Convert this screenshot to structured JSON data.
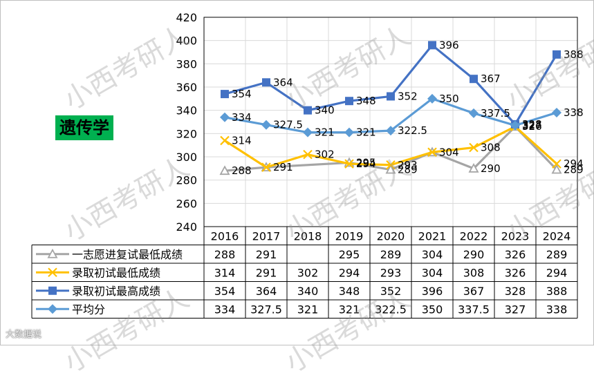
{
  "chart_data": {
    "type": "line",
    "subject_label": "遗传学",
    "categories": [
      "2016",
      "2017",
      "2018",
      "2019",
      "2020",
      "2021",
      "2022",
      "2023",
      "2024"
    ],
    "ylim": [
      240,
      420
    ],
    "yticks": [
      240,
      260,
      280,
      300,
      320,
      340,
      360,
      380,
      400,
      420
    ],
    "grid": true,
    "legend": "data-table-below",
    "series": [
      {
        "name": "一志愿进复试最低成绩",
        "color": "#a5a5a5",
        "marker": "triangle",
        "values": [
          288,
          291,
          null,
          295,
          289,
          304,
          290,
          326,
          289
        ],
        "table_values": [
          "288",
          "291",
          "",
          "295",
          "289",
          "304",
          "290",
          "326",
          "289"
        ]
      },
      {
        "name": "录取初试最低成绩",
        "color": "#ffc000",
        "marker": "x",
        "values": [
          314,
          291,
          302,
          294,
          293,
          304,
          308,
          326,
          294
        ],
        "table_values": [
          "314",
          "291",
          "302",
          "294",
          "293",
          "304",
          "308",
          "326",
          "294"
        ]
      },
      {
        "name": "录取初试最高成绩",
        "color": "#4472c4",
        "marker": "square",
        "values": [
          354,
          364,
          340,
          348,
          352,
          396,
          367,
          328,
          388
        ],
        "table_values": [
          "354",
          "364",
          "340",
          "348",
          "352",
          "396",
          "367",
          "328",
          "388"
        ]
      },
      {
        "name": "平均分",
        "color": "#5b9bd5",
        "marker": "diamond",
        "values": [
          334,
          327.5,
          321,
          321,
          322.5,
          350,
          337.5,
          327,
          338
        ],
        "table_values": [
          "334",
          "327.5",
          "321",
          "321",
          "322.5",
          "350",
          "337.5",
          "327",
          "338"
        ]
      }
    ],
    "data_labels": [
      {
        "series": 2,
        "index": 0,
        "text": "354"
      },
      {
        "series": 2,
        "index": 1,
        "text": "364"
      },
      {
        "series": 2,
        "index": 2,
        "text": "340"
      },
      {
        "series": 2,
        "index": 3,
        "text": "348"
      },
      {
        "series": 2,
        "index": 4,
        "text": "352"
      },
      {
        "series": 2,
        "index": 5,
        "text": "396"
      },
      {
        "series": 2,
        "index": 6,
        "text": "367"
      },
      {
        "series": 2,
        "index": 7,
        "text": "328"
      },
      {
        "series": 2,
        "index": 8,
        "text": "388"
      },
      {
        "series": 3,
        "index": 0,
        "text": "334"
      },
      {
        "series": 3,
        "index": 1,
        "text": "327.5"
      },
      {
        "series": 3,
        "index": 2,
        "text": "321"
      },
      {
        "series": 3,
        "index": 3,
        "text": "321"
      },
      {
        "series": 3,
        "index": 4,
        "text": "322.5"
      },
      {
        "series": 3,
        "index": 5,
        "text": "350"
      },
      {
        "series": 3,
        "index": 6,
        "text": "337.5"
      },
      {
        "series": 3,
        "index": 7,
        "text": "327"
      },
      {
        "series": 3,
        "index": 8,
        "text": "338"
      },
      {
        "series": 1,
        "index": 0,
        "text": "314"
      },
      {
        "series": 1,
        "index": 2,
        "text": "302"
      },
      {
        "series": 1,
        "index": 3,
        "text": "294"
      },
      {
        "series": 1,
        "index": 4,
        "text": "293"
      },
      {
        "series": 1,
        "index": 5,
        "text": "304"
      },
      {
        "series": 1,
        "index": 6,
        "text": "308"
      },
      {
        "series": 1,
        "index": 7,
        "text": "326"
      },
      {
        "series": 1,
        "index": 8,
        "text": "294"
      },
      {
        "series": 0,
        "index": 0,
        "text": "288"
      },
      {
        "series": 0,
        "index": 1,
        "text": "291"
      },
      {
        "series": 0,
        "index": 3,
        "text": "295"
      },
      {
        "series": 0,
        "index": 4,
        "text": "289"
      },
      {
        "series": 0,
        "index": 6,
        "text": "290"
      },
      {
        "series": 0,
        "index": 8,
        "text": "289"
      }
    ]
  },
  "watermark": "小西考研人",
  "source_mark": "大数据说"
}
